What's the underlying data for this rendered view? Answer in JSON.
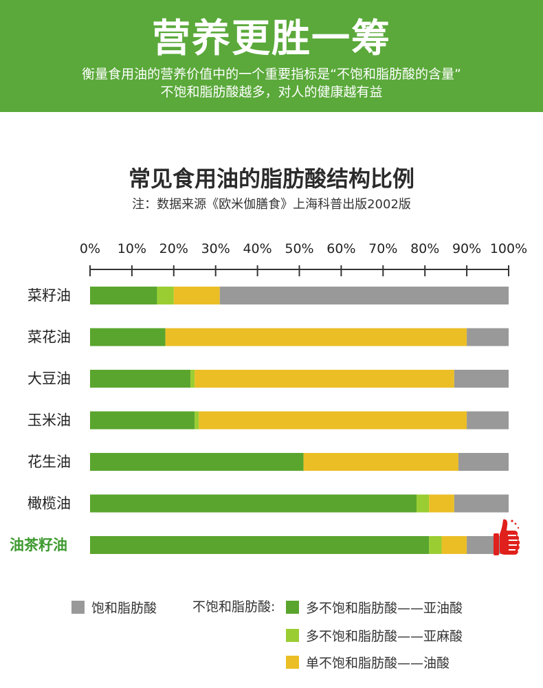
{
  "banner": {
    "title": "营养更胜一筹",
    "subtitle_line1": "衡量食用油的营养价值中的一个重要指标是“不饱和脂肪酸的含量”",
    "subtitle_line2": "不饱和脂肪酸越多，对人的健康越有益",
    "background": "#5aa93a"
  },
  "chart_title": "常见食用油的脂肪酸结构比例",
  "chart_note": "注：数据来源《欧米伽膳食》上海科普出版2002版",
  "chart_data": {
    "type": "bar",
    "orientation": "horizontal",
    "stacked": true,
    "x_ticks": [
      "0%",
      "10%",
      "20%",
      "30%",
      "40%",
      "50%",
      "60%",
      "70%",
      "80%",
      "90%",
      "100%"
    ],
    "xlim": [
      0,
      100
    ],
    "categories": [
      "菜籽油",
      "菜花油",
      "大豆油",
      "玉米油",
      "花生油",
      "橄榄油",
      "油茶籽油"
    ],
    "highlight_category": "油茶籽油",
    "series": [
      {
        "name": "多不饱和脂肪酸——亚油酸",
        "color": "#5aa52e",
        "values": [
          16,
          18,
          24,
          25,
          51,
          78,
          81
        ]
      },
      {
        "name": "多不饱和脂肪酸——亚麻酸",
        "color": "#9acd32",
        "values": [
          4,
          0,
          1,
          1,
          0,
          3,
          3
        ]
      },
      {
        "name": "单不饱和脂肪酸——油酸",
        "color": "#ebbe25",
        "values": [
          11,
          72,
          62,
          64,
          37,
          6,
          6
        ]
      },
      {
        "name": "饱和脂肪酸",
        "color": "#999999",
        "values": [
          69,
          10,
          13,
          10,
          12,
          13,
          10
        ]
      }
    ]
  },
  "legend": {
    "saturated_label": "饱和脂肪酸",
    "unsaturated_group_label": "不饱和脂肪酸:",
    "linoleic_label": "多不饱和脂肪酸——亚油酸",
    "linolenic_label": "多不饱和脂肪酸——亚麻酸",
    "oleic_label": "单不饱和脂肪酸——油酸"
  },
  "icons": {
    "thumb": "thumbs-up-icon"
  },
  "colors": {
    "highlight_text": "#3e9a2f",
    "thumb": "#e0201c"
  }
}
